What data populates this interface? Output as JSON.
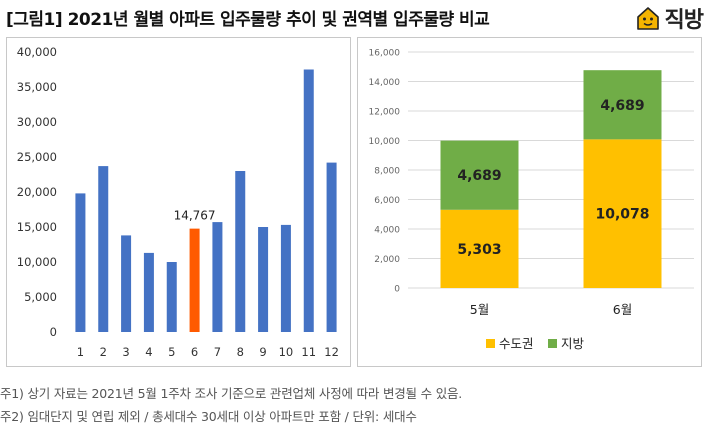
{
  "header": {
    "title": "[그림1] 2021년 월별 아파트 입주물량 추이 및 권역별 입주물량 비교",
    "logo_text": "직방",
    "logo_icon": "house-face-icon",
    "logo_color": "#f4b400"
  },
  "chart_data": [
    {
      "type": "bar",
      "categories": [
        "1",
        "2",
        "3",
        "4",
        "5",
        "6",
        "7",
        "8",
        "9",
        "10",
        "11",
        "12"
      ],
      "values": [
        19800,
        23700,
        13800,
        11300,
        10000,
        14767,
        15700,
        23000,
        15000,
        15300,
        37500,
        24200
      ],
      "highlight": {
        "index": 5,
        "label": "14,767",
        "color": "#ff5a00"
      },
      "bar_color": "#4472c4",
      "ylim": [
        0,
        40000
      ],
      "yticks": [
        "0",
        "5,000",
        "10,000",
        "15,000",
        "20,000",
        "25,000",
        "30,000",
        "35,000",
        "40,000"
      ],
      "grid": false
    },
    {
      "type": "bar",
      "stacked": true,
      "categories": [
        "5월",
        "6월"
      ],
      "series": [
        {
          "name": "수도권",
          "values": [
            5303,
            10078
          ],
          "labels": [
            "5,303",
            "10,078"
          ],
          "color": "#ffc000"
        },
        {
          "name": "지방",
          "values": [
            4689,
            4689
          ],
          "labels": [
            "4,689",
            "4,689"
          ],
          "color": "#70ad47"
        }
      ],
      "ylim": [
        0,
        16000
      ],
      "yticks": [
        "0",
        "2,000",
        "4,000",
        "6,000",
        "8,000",
        "10,000",
        "12,000",
        "14,000",
        "16,000"
      ],
      "grid": true,
      "legend": "bottom"
    }
  ],
  "notes": [
    "주1) 상기 자료는 2021년 5월 1주차 조사 기준으로 관련업체 사정에 따라 변경될 수 있음.",
    "주2) 임대단지 및 연립 제외 / 총세대수 30세대 이상 아파트만 포함 / 단위: 세대수"
  ]
}
